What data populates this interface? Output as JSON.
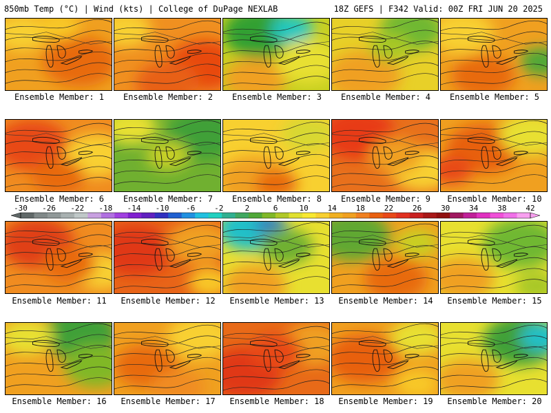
{
  "header": {
    "left": "850mb Temp (°C) | Wind (kts) | College of DuPage NEXLAB",
    "right": "18Z GEFS | F342 Valid: 00Z FRI JUN 20 2025"
  },
  "caption_prefix": "Ensemble Member:",
  "members": [
    {
      "label": "Ensemble Member: 1",
      "base": "#f0a020",
      "blobs": [
        [
          "#e86a10",
          0.7,
          0.6,
          0.35
        ],
        [
          "#f8d030",
          0.15,
          0.2,
          0.25
        ],
        [
          "#f8c828",
          0.5,
          0.1,
          0.2
        ]
      ]
    },
    {
      "label": "Ensemble Member: 2",
      "base": "#f09020",
      "blobs": [
        [
          "#e84a10",
          0.85,
          0.65,
          0.35
        ],
        [
          "#f8d030",
          0.1,
          0.15,
          0.25
        ],
        [
          "#e86018",
          0.5,
          0.9,
          0.3
        ]
      ]
    },
    {
      "label": "Ensemble Member: 3",
      "base": "#c8d020",
      "blobs": [
        [
          "#30a030",
          0.35,
          0.2,
          0.35
        ],
        [
          "#20c8c0",
          0.65,
          0.15,
          0.2
        ],
        [
          "#f0a020",
          0.3,
          0.85,
          0.3
        ],
        [
          "#e8e030",
          0.8,
          0.6,
          0.3
        ]
      ]
    },
    {
      "label": "Ensemble Member: 4",
      "base": "#e8d028",
      "blobs": [
        [
          "#70b830",
          0.75,
          0.15,
          0.3
        ],
        [
          "#f0a020",
          0.3,
          0.8,
          0.35
        ],
        [
          "#a8c828",
          0.55,
          0.4,
          0.2
        ]
      ]
    },
    {
      "label": "Ensemble Member: 5",
      "base": "#f0a020",
      "blobs": [
        [
          "#50a838",
          0.95,
          0.6,
          0.2
        ],
        [
          "#f8d030",
          0.2,
          0.2,
          0.3
        ],
        [
          "#e86a10",
          0.4,
          0.8,
          0.3
        ]
      ]
    },
    {
      "label": "Ensemble Member: 6",
      "base": "#f08c20",
      "blobs": [
        [
          "#e84a18",
          0.25,
          0.35,
          0.35
        ],
        [
          "#f8d030",
          0.85,
          0.5,
          0.3
        ],
        [
          "#e86a10",
          0.5,
          0.8,
          0.25
        ]
      ]
    },
    {
      "label": "Ensemble Member: 7",
      "base": "#70b030",
      "blobs": [
        [
          "#40a038",
          0.85,
          0.2,
          0.35
        ],
        [
          "#e8e030",
          0.15,
          0.1,
          0.25
        ],
        [
          "#c8d028",
          0.5,
          0.5,
          0.2
        ]
      ]
    },
    {
      "label": "Ensemble Member: 8",
      "base": "#f8d030",
      "blobs": [
        [
          "#f0a020",
          0.3,
          0.85,
          0.35
        ],
        [
          "#e86a10",
          0.5,
          0.9,
          0.2
        ],
        [
          "#d8d830",
          0.8,
          0.2,
          0.25
        ]
      ]
    },
    {
      "label": "Ensemble Member: 9",
      "base": "#e8701c",
      "blobs": [
        [
          "#e83a18",
          0.25,
          0.2,
          0.35
        ],
        [
          "#f8d030",
          0.85,
          0.7,
          0.3
        ],
        [
          "#f0a020",
          0.6,
          0.5,
          0.25
        ]
      ]
    },
    {
      "label": "Ensemble Member: 10",
      "base": "#f0a020",
      "blobs": [
        [
          "#e86010",
          0.4,
          0.4,
          0.35
        ],
        [
          "#e8e030",
          0.85,
          0.2,
          0.3
        ],
        [
          "#e84a18",
          0.1,
          0.7,
          0.2
        ]
      ]
    },
    {
      "label": "Ensemble Member: 11",
      "base": "#f08c20",
      "blobs": [
        [
          "#e04018",
          0.3,
          0.3,
          0.35
        ],
        [
          "#f8d030",
          0.9,
          0.7,
          0.25
        ],
        [
          "#e86a10",
          0.6,
          0.6,
          0.25
        ]
      ]
    },
    {
      "label": "Ensemble Member: 12",
      "base": "#e86418",
      "blobs": [
        [
          "#e03818",
          0.2,
          0.4,
          0.35
        ],
        [
          "#f0a020",
          0.8,
          0.3,
          0.3
        ],
        [
          "#f8c828",
          0.9,
          0.85,
          0.2
        ]
      ]
    },
    {
      "label": "Ensemble Member: 13",
      "base": "#e8e030",
      "blobs": [
        [
          "#20c0c8",
          0.25,
          0.1,
          0.3
        ],
        [
          "#3080c0",
          0.45,
          0.05,
          0.15
        ],
        [
          "#70b030",
          0.6,
          0.35,
          0.25
        ],
        [
          "#f0a020",
          0.3,
          0.9,
          0.3
        ]
      ]
    },
    {
      "label": "Ensemble Member: 14",
      "base": "#f0a020",
      "blobs": [
        [
          "#60a830",
          0.2,
          0.2,
          0.35
        ],
        [
          "#e86a10",
          0.6,
          0.8,
          0.3
        ],
        [
          "#c8d020",
          0.8,
          0.3,
          0.2
        ]
      ]
    },
    {
      "label": "Ensemble Member: 15",
      "base": "#e8e030",
      "blobs": [
        [
          "#70b830",
          0.75,
          0.3,
          0.35
        ],
        [
          "#f0a020",
          0.2,
          0.8,
          0.3
        ],
        [
          "#a8c828",
          0.9,
          0.9,
          0.2
        ]
      ]
    },
    {
      "label": "Ensemble Member: 16",
      "base": "#f0a020",
      "blobs": [
        [
          "#40a038",
          0.7,
          0.15,
          0.35
        ],
        [
          "#80b828",
          0.85,
          0.6,
          0.3
        ],
        [
          "#e8e030",
          0.2,
          0.2,
          0.25
        ]
      ]
    },
    {
      "label": "Ensemble Member: 17",
      "base": "#f0a020",
      "blobs": [
        [
          "#f8d030",
          0.8,
          0.2,
          0.3
        ],
        [
          "#e86a10",
          0.3,
          0.6,
          0.3
        ],
        [
          "#f08c20",
          0.6,
          0.9,
          0.25
        ]
      ]
    },
    {
      "label": "Ensemble Member: 18",
      "base": "#e86a18",
      "blobs": [
        [
          "#e03818",
          0.2,
          0.7,
          0.35
        ],
        [
          "#f0a020",
          0.85,
          0.3,
          0.3
        ],
        [
          "#e84a18",
          0.5,
          0.4,
          0.25
        ]
      ]
    },
    {
      "label": "Ensemble Member: 19",
      "base": "#f0a020",
      "blobs": [
        [
          "#e86010",
          0.3,
          0.5,
          0.35
        ],
        [
          "#e8e030",
          0.8,
          0.2,
          0.25
        ],
        [
          "#f8c828",
          0.8,
          0.85,
          0.2
        ]
      ]
    },
    {
      "label": "Ensemble Member: 20",
      "base": "#e8e030",
      "blobs": [
        [
          "#40a038",
          0.75,
          0.25,
          0.35
        ],
        [
          "#20c0c8",
          0.95,
          0.2,
          0.2
        ],
        [
          "#f0a020",
          0.25,
          0.8,
          0.3
        ]
      ]
    }
  ],
  "colorbar": {
    "labels": [
      "-30",
      "-26",
      "-22",
      "-18",
      "-14",
      "-10",
      "-6",
      "-2",
      "2",
      "6",
      "10",
      "14",
      "18",
      "22",
      "26",
      "30",
      "34",
      "38",
      "42"
    ],
    "colors": [
      "#606868",
      "#808888",
      "#909898",
      "#a8b0b0",
      "#c0c8c8",
      "#c8a0e0",
      "#b070e0",
      "#a040e0",
      "#8020d0",
      "#6020c0",
      "#3030c0",
      "#2060d0",
      "#2090e0",
      "#20c0e0",
      "#20d0c0",
      "#30b090",
      "#40a860",
      "#50a838",
      "#80b828",
      "#b0c828",
      "#e0e030",
      "#f8e830",
      "#f8d030",
      "#f0b020",
      "#f0a020",
      "#f08020",
      "#e86010",
      "#e84818",
      "#e03020",
      "#c82020",
      "#a81818",
      "#901010",
      "#a01860",
      "#c02098",
      "#e030c0",
      "#f050d8",
      "#f070e8",
      "#f8a0f0"
    ]
  }
}
